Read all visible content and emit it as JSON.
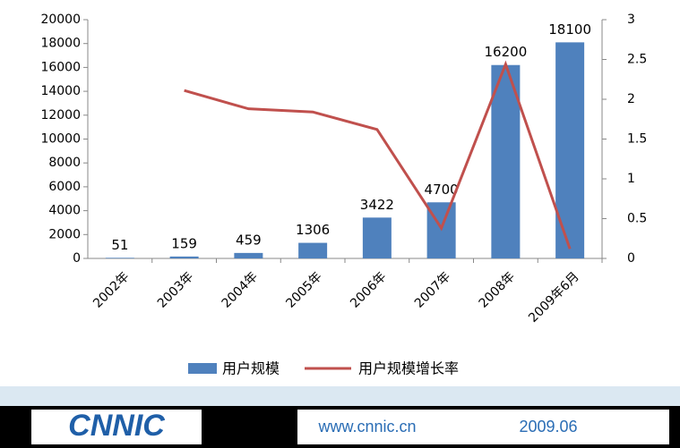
{
  "chart_data": {
    "type": "bar-line",
    "categories": [
      "2002年",
      "2003年",
      "2004年",
      "2005年",
      "2006年",
      "2007年",
      "2008年",
      "2009年6月"
    ],
    "series": [
      {
        "name": "用户规模",
        "color": "#4f81bd",
        "type": "bar",
        "values": [
          51,
          159,
          459,
          1306,
          3422,
          4700,
          16200,
          18100
        ]
      },
      {
        "name": "用户规模增长率",
        "color": "#c0504d",
        "type": "line",
        "axis": "y2",
        "values": [
          null,
          2.11,
          1.88,
          1.84,
          1.62,
          0.38,
          2.44,
          0.12
        ]
      }
    ],
    "ylim": [
      0,
      20000
    ],
    "yticks": [
      0,
      2000,
      4000,
      6000,
      8000,
      10000,
      12000,
      14000,
      16000,
      18000,
      20000
    ],
    "y2lim": [
      0,
      3
    ],
    "y2ticks": [
      0,
      0.5,
      1,
      1.5,
      2,
      2.5,
      3
    ],
    "legend": "bottom"
  },
  "footer": {
    "logo": "CNNIC",
    "url": "www.cnnic.cn",
    "date": "2009.06"
  }
}
